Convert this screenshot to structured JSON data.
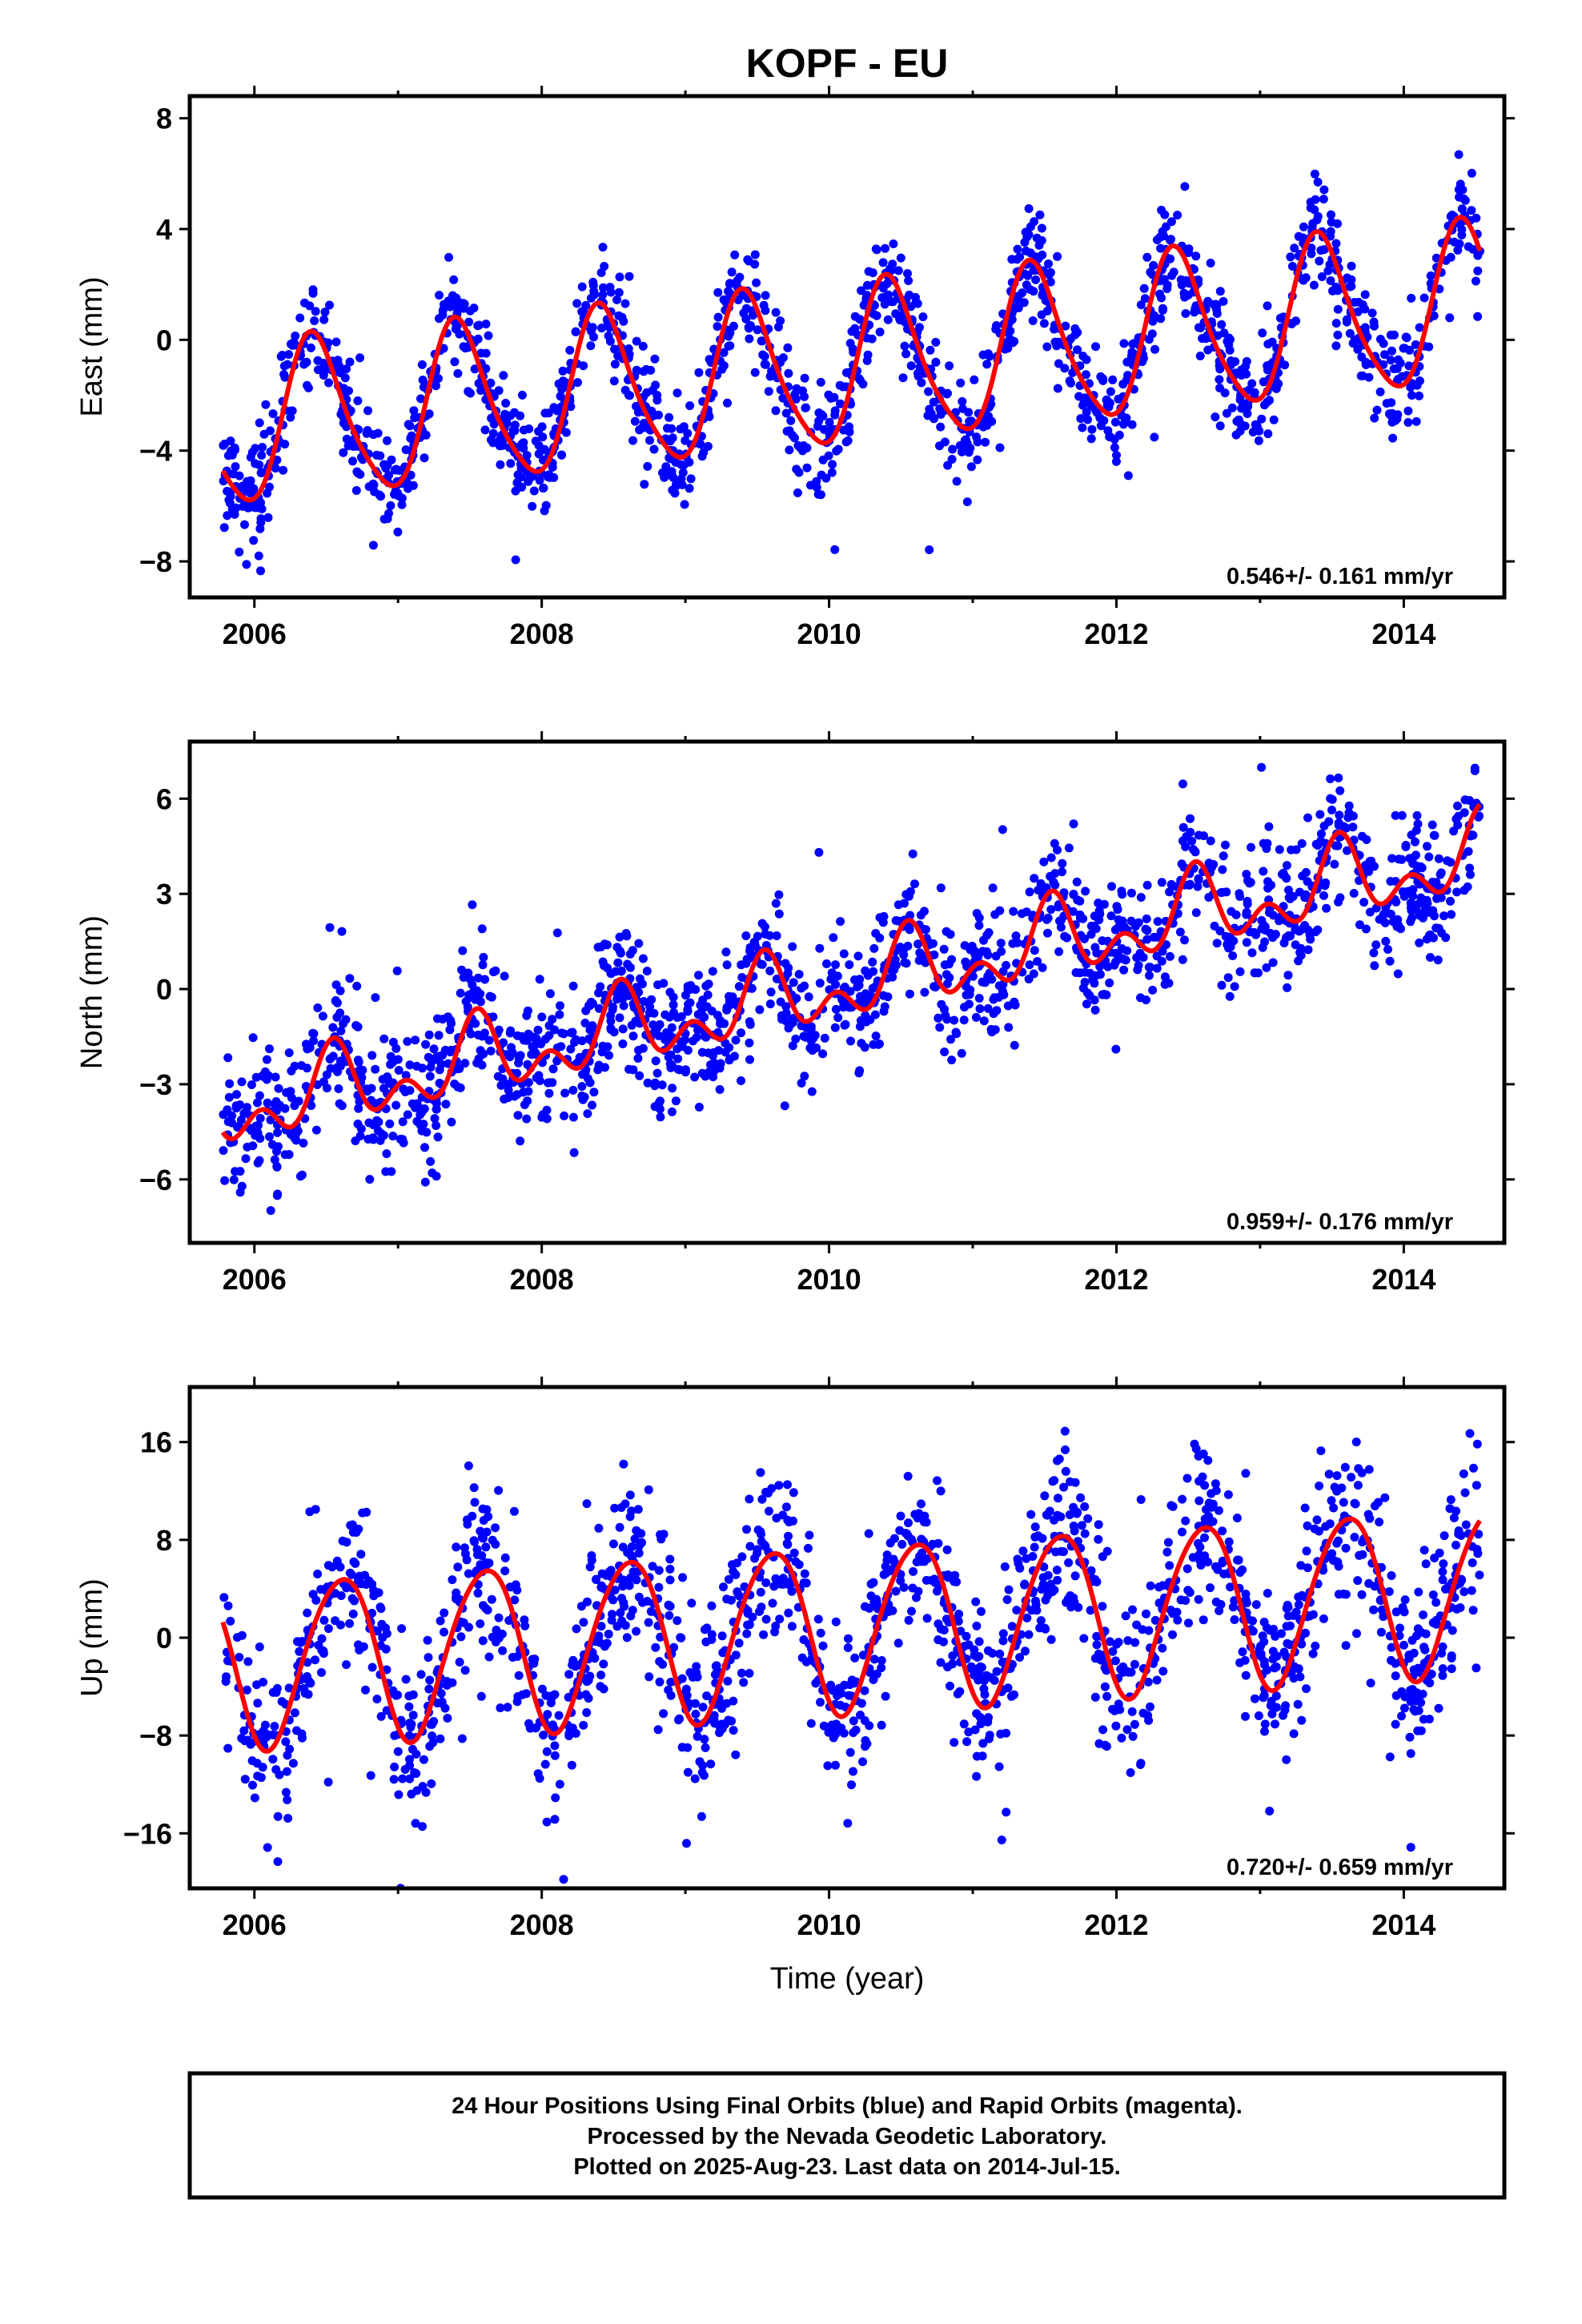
{
  "title": "KOPF - EU",
  "footer": {
    "lines": [
      "24 Hour Positions Using Final Orbits (blue) and Rapid Orbits (magenta).",
      "Processed by the Nevada Geodetic Laboratory.",
      "Plotted on 2025-Aug-23. Last data on 2014-Jul-15."
    ]
  },
  "colors": {
    "final_orbits": "#0000ff",
    "model_fit": "#ff0000",
    "frame": "#000000"
  },
  "chart_data": [
    {
      "type": "scatter",
      "component": "east",
      "ylabel": "East (mm)",
      "xlabel": "",
      "xlim": [
        2005.55,
        2014.7
      ],
      "ylim": [
        -9.3,
        8.8
      ],
      "xticks": [
        2006,
        2008,
        2010,
        2012,
        2014
      ],
      "xtick_labels": [
        "2006",
        "2008",
        "2010",
        "2012",
        "2014"
      ],
      "yticks": [
        -8,
        -4,
        0,
        4,
        8
      ],
      "ytick_labels": [
        "−8",
        "−4",
        "0",
        "4",
        "8"
      ],
      "rate_label": "0.546+/- 0.161 mm/yr",
      "x_start": 2005.78,
      "x_end": 2014.53,
      "model": {
        "trend_start": -3.2,
        "trend_end": 1.3,
        "annual_amp": 2.85,
        "annual_peak": 0.42,
        "semiannual_amp": 0.45,
        "semiannual_peak": 0.35,
        "scatter": 0.95
      },
      "series": [
        {
          "name": "24 Hour Positions",
          "color": "#0000ff",
          "kind": "points"
        },
        {
          "name": "",
          "color": "#ff0000",
          "kind": "fit"
        }
      ]
    },
    {
      "type": "scatter",
      "component": "north",
      "ylabel": "North (mm)",
      "xlabel": "",
      "xlim": [
        2005.55,
        2014.7
      ],
      "ylim": [
        -8.0,
        7.8
      ],
      "xticks": [
        2006,
        2008,
        2010,
        2012,
        2014
      ],
      "xtick_labels": [
        "2006",
        "2008",
        "2010",
        "2012",
        "2014"
      ],
      "yticks": [
        -6,
        -3,
        0,
        3,
        6
      ],
      "ytick_labels": [
        "−6",
        "−3",
        "0",
        "3",
        "6"
      ],
      "rate_label": "0.959+/- 0.176 mm/yr",
      "x_start": 2005.78,
      "x_end": 2014.53,
      "model": {
        "trend_start": -3.9,
        "trend_end": 4.2,
        "annual_amp": 0.9,
        "annual_peak": 0.55,
        "semiannual_amp": 0.75,
        "semiannual_peak": 0.05,
        "scatter": 1.05
      },
      "series": [
        {
          "name": "24 Hour Positions",
          "color": "#0000ff",
          "kind": "points"
        },
        {
          "name": "",
          "color": "#ff0000",
          "kind": "fit"
        }
      ]
    },
    {
      "type": "scatter",
      "component": "up",
      "ylabel": "Up (mm)",
      "xlabel": "Time (year)",
      "xlim": [
        2005.55,
        2014.7
      ],
      "ylim": [
        -20.5,
        20.5
      ],
      "xticks": [
        2006,
        2008,
        2010,
        2012,
        2014
      ],
      "xtick_labels": [
        "2006",
        "2008",
        "2010",
        "2012",
        "2014"
      ],
      "yticks": [
        -16,
        -8,
        0,
        8,
        16
      ],
      "ytick_labels": [
        "−16",
        "−8",
        "0",
        "8",
        "16"
      ],
      "rate_label": "0.720+/- 0.659 mm/yr",
      "x_start": 2005.78,
      "x_end": 2014.53,
      "model": {
        "trend_start": -2.2,
        "trend_end": 4.0,
        "annual_amp": 6.8,
        "annual_peak": 0.6,
        "semiannual_amp": 0.6,
        "semiannual_peak": 0.3,
        "scatter": 3.6
      },
      "series": [
        {
          "name": "24 Hour Positions",
          "color": "#0000ff",
          "kind": "points"
        },
        {
          "name": "",
          "color": "#ff0000",
          "kind": "fit"
        }
      ]
    }
  ]
}
